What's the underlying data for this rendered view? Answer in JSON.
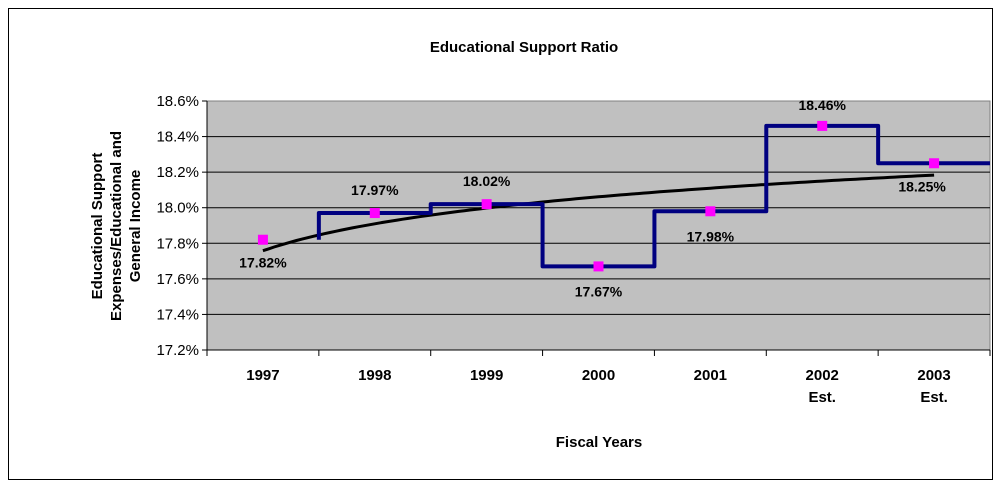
{
  "chart_data": {
    "type": "line",
    "title": "Educational Support Ratio",
    "xlabel": "Fiscal Years",
    "ylabel_lines": [
      "Educational Support",
      "Expenses/Educational and",
      "General Income"
    ],
    "categories": [
      {
        "line1": "1997",
        "line2": ""
      },
      {
        "line1": "1998",
        "line2": ""
      },
      {
        "line1": "1999",
        "line2": ""
      },
      {
        "line1": "2000",
        "line2": ""
      },
      {
        "line1": "2001",
        "line2": ""
      },
      {
        "line1": "2002",
        "line2": "Est."
      },
      {
        "line1": "2003",
        "line2": "Est."
      }
    ],
    "ylim": [
      0.172,
      0.186
    ],
    "yticks": [
      {
        "value": 0.172,
        "label": "17.2%"
      },
      {
        "value": 0.174,
        "label": "17.4%"
      },
      {
        "value": 0.176,
        "label": "17.6%"
      },
      {
        "value": 0.178,
        "label": "17.8%"
      },
      {
        "value": 0.18,
        "label": "18.0%"
      },
      {
        "value": 0.182,
        "label": "18.2%"
      },
      {
        "value": 0.184,
        "label": "18.4%"
      },
      {
        "value": 0.186,
        "label": "18.6%"
      }
    ],
    "grid": true,
    "series": [
      {
        "values": [
          0.1782,
          0.1797,
          0.1802,
          0.1767,
          0.1798,
          0.1846,
          0.1825
        ],
        "labels": [
          "17.82%",
          "17.97%",
          "18.02%",
          "17.67%",
          "17.98%",
          "18.46%",
          "18.25%"
        ],
        "line_color": "#000080",
        "marker_color": "#ff00ff"
      }
    ],
    "trendline": {
      "type": "logarithmic",
      "color": "#000000"
    },
    "plot_background": "#c0c0c0"
  }
}
